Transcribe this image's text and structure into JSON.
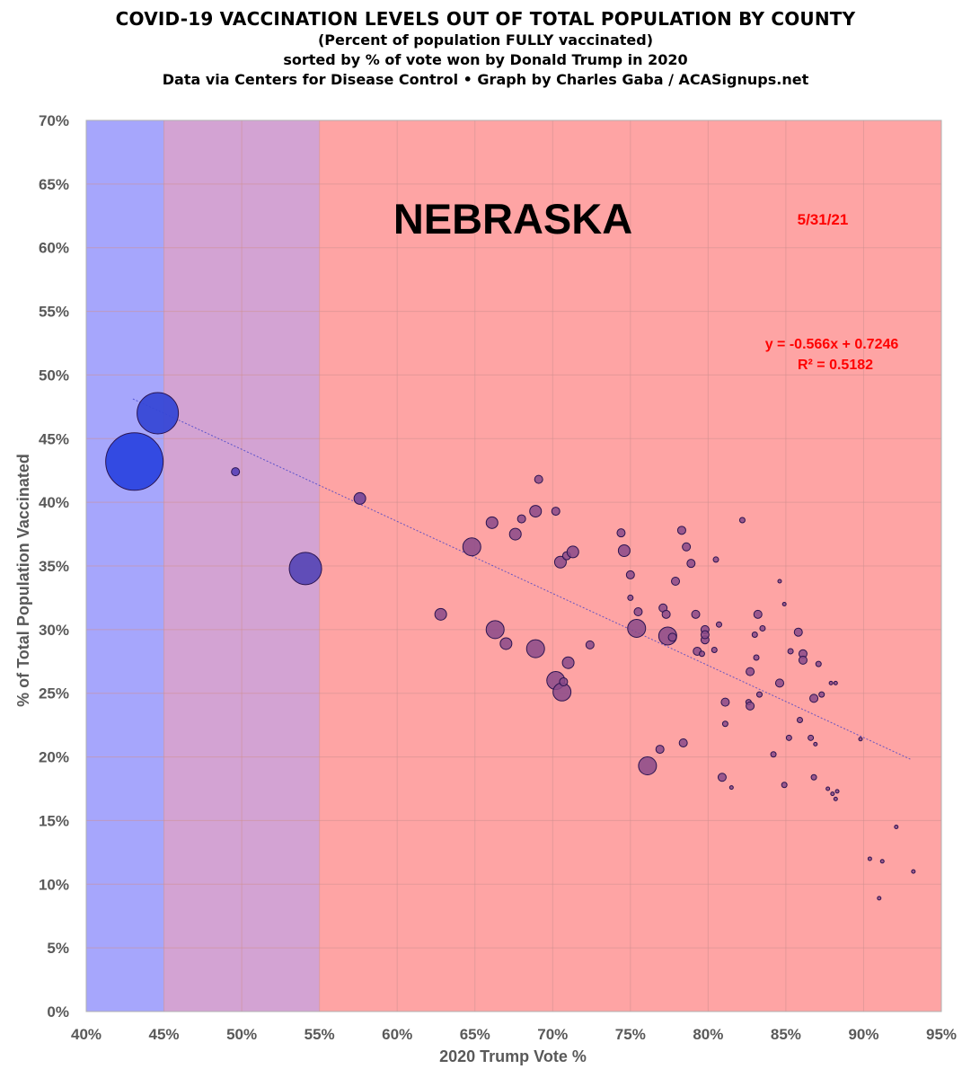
{
  "titles": {
    "line1": "COVID-19 VACCINATION LEVELS OUT OF TOTAL POPULATION BY COUNTY",
    "line2": "(Percent of population FULLY vaccinated)",
    "line3": "sorted by % of vote won by Donald Trump in 2020",
    "line4": "Data via Centers for Disease Control • Graph by Charles Gaba / ACASignups.net"
  },
  "chart_data": {
    "type": "scatter",
    "title": "COVID-19 VACCINATION LEVELS OUT OF TOTAL POPULATION BY COUNTY",
    "xlabel": "2020 Trump Vote %",
    "ylabel": "% of Total Population Vaccinated",
    "xlim": [
      0.4,
      0.95
    ],
    "ylim": [
      0.0,
      0.7
    ],
    "xticks": [
      "40%",
      "45%",
      "50%",
      "55%",
      "60%",
      "65%",
      "70%",
      "75%",
      "80%",
      "85%",
      "90%",
      "95%"
    ],
    "yticks": [
      "0%",
      "5%",
      "10%",
      "15%",
      "20%",
      "25%",
      "30%",
      "35%",
      "40%",
      "45%",
      "50%",
      "55%",
      "60%",
      "65%",
      "70%"
    ],
    "state_label": "NEBRASKA",
    "date_label": "5/31/21",
    "trendline": {
      "equation": "y = -0.566x + 0.7246",
      "r_squared": "R² = 0.5182",
      "slope": -0.566,
      "intercept": 0.7246,
      "x_range": [
        0.43,
        0.93
      ]
    },
    "background_bands": [
      {
        "from": 0.4,
        "to": 0.45,
        "color": "#a6a6fc"
      },
      {
        "from": 0.45,
        "to": 0.55,
        "color": "#d3a3d3"
      },
      {
        "from": 0.55,
        "to": 0.95,
        "color": "#fea4a4"
      }
    ],
    "colors": {
      "trend": "#4040c8",
      "annotation": "#ff0000",
      "grid": "#d09090",
      "point_stroke": "#2a1450"
    },
    "series": [
      {
        "name": "counties",
        "points": [
          {
            "x": 0.431,
            "y": 0.432,
            "r": "xl",
            "c": "#2c45e0"
          },
          {
            "x": 0.446,
            "y": 0.47,
            "r": "l",
            "c": "#3748d6"
          },
          {
            "x": 0.496,
            "y": 0.424,
            "r": "s",
            "c": "#5d46b8"
          },
          {
            "x": 0.541,
            "y": 0.348,
            "r": "m",
            "c": "#5a49b6"
          },
          {
            "x": 0.576,
            "y": 0.403,
            "r": "xs2",
            "c": "#7a4a9a"
          },
          {
            "x": 0.628,
            "y": 0.312,
            "r": "xs2",
            "c": "#8a4a8a"
          },
          {
            "x": 0.648,
            "y": 0.365,
            "r": "s2",
            "c": "#8a4a8a"
          },
          {
            "x": 0.661,
            "y": 0.384,
            "r": "xs2",
            "c": "#8a4a8a"
          },
          {
            "x": 0.663,
            "y": 0.3,
            "r": "s2",
            "c": "#8a4a8a"
          },
          {
            "x": 0.67,
            "y": 0.289,
            "r": "xs2",
            "c": "#8a4a8a"
          },
          {
            "x": 0.676,
            "y": 0.375,
            "r": "xs2",
            "c": "#8a4a8a"
          },
          {
            "x": 0.68,
            "y": 0.387,
            "r": "xs",
            "c": "#8a4a8a"
          },
          {
            "x": 0.689,
            "y": 0.393,
            "r": "xs2",
            "c": "#8a4a8a"
          },
          {
            "x": 0.689,
            "y": 0.285,
            "r": "s2",
            "c": "#8a4a8a"
          },
          {
            "x": 0.691,
            "y": 0.418,
            "r": "xs",
            "c": "#8a4a8a"
          },
          {
            "x": 0.702,
            "y": 0.393,
            "r": "xs",
            "c": "#8a4a8a"
          },
          {
            "x": 0.702,
            "y": 0.26,
            "r": "s2",
            "c": "#8a4a8a"
          },
          {
            "x": 0.705,
            "y": 0.353,
            "r": "xs2",
            "c": "#8a4a8a"
          },
          {
            "x": 0.706,
            "y": 0.251,
            "r": "s2",
            "c": "#8a4a8a"
          },
          {
            "x": 0.707,
            "y": 0.259,
            "r": "xs",
            "c": "#8a4a8a"
          },
          {
            "x": 0.709,
            "y": 0.358,
            "r": "xs",
            "c": "#8a4a8a"
          },
          {
            "x": 0.71,
            "y": 0.274,
            "r": "xs2",
            "c": "#8a4a8a"
          },
          {
            "x": 0.713,
            "y": 0.361,
            "r": "xs2",
            "c": "#8a4a8a"
          },
          {
            "x": 0.724,
            "y": 0.288,
            "r": "xs",
            "c": "#8a4a8a"
          },
          {
            "x": 0.744,
            "y": 0.376,
            "r": "xs",
            "c": "#8a4a8a"
          },
          {
            "x": 0.746,
            "y": 0.362,
            "r": "xs2",
            "c": "#8a4a8a"
          },
          {
            "x": 0.75,
            "y": 0.343,
            "r": "xs",
            "c": "#8a4a8a"
          },
          {
            "x": 0.75,
            "y": 0.325,
            "r": "xxs",
            "c": "#8a4a8a"
          },
          {
            "x": 0.754,
            "y": 0.301,
            "r": "s2",
            "c": "#8a4a8a"
          },
          {
            "x": 0.755,
            "y": 0.314,
            "r": "xs",
            "c": "#8a4a8a"
          },
          {
            "x": 0.761,
            "y": 0.193,
            "r": "s2",
            "c": "#8a4a8a"
          },
          {
            "x": 0.769,
            "y": 0.206,
            "r": "xs",
            "c": "#8a4a8a"
          },
          {
            "x": 0.771,
            "y": 0.317,
            "r": "xs",
            "c": "#8a4a8a"
          },
          {
            "x": 0.773,
            "y": 0.312,
            "r": "xs",
            "c": "#8a4a8a"
          },
          {
            "x": 0.774,
            "y": 0.295,
            "r": "s2",
            "c": "#8a4a8a"
          },
          {
            "x": 0.777,
            "y": 0.294,
            "r": "xs",
            "c": "#8a4a8a"
          },
          {
            "x": 0.779,
            "y": 0.338,
            "r": "xs",
            "c": "#8a4a8a"
          },
          {
            "x": 0.783,
            "y": 0.378,
            "r": "xs",
            "c": "#8a4a8a"
          },
          {
            "x": 0.784,
            "y": 0.211,
            "r": "xs",
            "c": "#8a4a8a"
          },
          {
            "x": 0.786,
            "y": 0.365,
            "r": "xs",
            "c": "#8a4a8a"
          },
          {
            "x": 0.789,
            "y": 0.352,
            "r": "xs",
            "c": "#8a4a8a"
          },
          {
            "x": 0.792,
            "y": 0.312,
            "r": "xs",
            "c": "#8a4a8a"
          },
          {
            "x": 0.793,
            "y": 0.283,
            "r": "xs",
            "c": "#8a4a8a"
          },
          {
            "x": 0.796,
            "y": 0.281,
            "r": "xxs",
            "c": "#8a4a8a"
          },
          {
            "x": 0.798,
            "y": 0.3,
            "r": "xs",
            "c": "#8a4a8a"
          },
          {
            "x": 0.798,
            "y": 0.292,
            "r": "xs",
            "c": "#8a4a8a"
          },
          {
            "x": 0.798,
            "y": 0.296,
            "r": "xs",
            "c": "#8a4a8a"
          },
          {
            "x": 0.804,
            "y": 0.284,
            "r": "xxs",
            "c": "#8a4a8a"
          },
          {
            "x": 0.805,
            "y": 0.355,
            "r": "xxs",
            "c": "#8a4a8a"
          },
          {
            "x": 0.807,
            "y": 0.304,
            "r": "xxs",
            "c": "#8a4a8a"
          },
          {
            "x": 0.809,
            "y": 0.184,
            "r": "xs",
            "c": "#8a4a8a"
          },
          {
            "x": 0.811,
            "y": 0.243,
            "r": "xs",
            "c": "#8a4a8a"
          },
          {
            "x": 0.811,
            "y": 0.226,
            "r": "xxs",
            "c": "#8a4a8a"
          },
          {
            "x": 0.815,
            "y": 0.176,
            "r": "xxxs",
            "c": "#8a4a8a"
          },
          {
            "x": 0.822,
            "y": 0.386,
            "r": "xxs",
            "c": "#8a4a8a"
          },
          {
            "x": 0.826,
            "y": 0.243,
            "r": "xxs",
            "c": "#8a4a8a"
          },
          {
            "x": 0.827,
            "y": 0.24,
            "r": "xs",
            "c": "#8a4a8a"
          },
          {
            "x": 0.827,
            "y": 0.267,
            "r": "xs",
            "c": "#8a4a8a"
          },
          {
            "x": 0.83,
            "y": 0.296,
            "r": "xxs",
            "c": "#8a4a8a"
          },
          {
            "x": 0.831,
            "y": 0.278,
            "r": "xxs",
            "c": "#8a4a8a"
          },
          {
            "x": 0.832,
            "y": 0.312,
            "r": "xs",
            "c": "#8a4a8a"
          },
          {
            "x": 0.833,
            "y": 0.249,
            "r": "xxs",
            "c": "#8a4a8a"
          },
          {
            "x": 0.835,
            "y": 0.301,
            "r": "xxs",
            "c": "#8a4a8a"
          },
          {
            "x": 0.842,
            "y": 0.202,
            "r": "xxs",
            "c": "#8a4a8a"
          },
          {
            "x": 0.846,
            "y": 0.338,
            "r": "xxxs",
            "c": "#8a4a8a"
          },
          {
            "x": 0.846,
            "y": 0.258,
            "r": "xs",
            "c": "#8a4a8a"
          },
          {
            "x": 0.849,
            "y": 0.32,
            "r": "xxxs",
            "c": "#8a4a8a"
          },
          {
            "x": 0.849,
            "y": 0.178,
            "r": "xxs",
            "c": "#8a4a8a"
          },
          {
            "x": 0.852,
            "y": 0.215,
            "r": "xxs",
            "c": "#8a4a8a"
          },
          {
            "x": 0.853,
            "y": 0.283,
            "r": "xxs",
            "c": "#8a4a8a"
          },
          {
            "x": 0.858,
            "y": 0.298,
            "r": "xs",
            "c": "#8a4a8a"
          },
          {
            "x": 0.859,
            "y": 0.229,
            "r": "xxs",
            "c": "#8a4a8a"
          },
          {
            "x": 0.861,
            "y": 0.281,
            "r": "xs",
            "c": "#8a4a8a"
          },
          {
            "x": 0.861,
            "y": 0.276,
            "r": "xs",
            "c": "#8a4a8a"
          },
          {
            "x": 0.866,
            "y": 0.215,
            "r": "xxs",
            "c": "#8a4a8a"
          },
          {
            "x": 0.868,
            "y": 0.246,
            "r": "xs",
            "c": "#8a4a8a"
          },
          {
            "x": 0.868,
            "y": 0.184,
            "r": "xxs",
            "c": "#8a4a8a"
          },
          {
            "x": 0.869,
            "y": 0.21,
            "r": "xxxs",
            "c": "#8a4a8a"
          },
          {
            "x": 0.871,
            "y": 0.273,
            "r": "xxs",
            "c": "#8a4a8a"
          },
          {
            "x": 0.873,
            "y": 0.249,
            "r": "xxs",
            "c": "#8a4a8a"
          },
          {
            "x": 0.877,
            "y": 0.175,
            "r": "xxxs",
            "c": "#8a4a8a"
          },
          {
            "x": 0.879,
            "y": 0.258,
            "r": "xxxs",
            "c": "#8a4a8a"
          },
          {
            "x": 0.88,
            "y": 0.171,
            "r": "xxxs",
            "c": "#8a4a8a"
          },
          {
            "x": 0.882,
            "y": 0.167,
            "r": "xxxs",
            "c": "#8a4a8a"
          },
          {
            "x": 0.882,
            "y": 0.258,
            "r": "xxxs",
            "c": "#8a4a8a"
          },
          {
            "x": 0.883,
            "y": 0.173,
            "r": "xxxs",
            "c": "#8a4a8a"
          },
          {
            "x": 0.898,
            "y": 0.214,
            "r": "xxxs",
            "c": "#8a4a8a"
          },
          {
            "x": 0.904,
            "y": 0.12,
            "r": "xxxs",
            "c": "#8a4a8a"
          },
          {
            "x": 0.91,
            "y": 0.089,
            "r": "xxxs",
            "c": "#8a4a8a"
          },
          {
            "x": 0.912,
            "y": 0.118,
            "r": "xxxs",
            "c": "#8a4a8a"
          },
          {
            "x": 0.921,
            "y": 0.145,
            "r": "xxxs",
            "c": "#8a4a8a"
          },
          {
            "x": 0.932,
            "y": 0.11,
            "r": "xxxs",
            "c": "#8a4a8a"
          }
        ]
      }
    ]
  }
}
